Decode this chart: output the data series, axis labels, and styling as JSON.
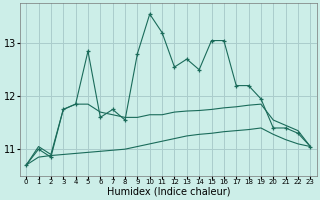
{
  "xlabel": "Humidex (Indice chaleur)",
  "background_color": "#cceee8",
  "grid_color": "#aacccc",
  "line_color": "#1a6b5a",
  "x_values": [
    0,
    1,
    2,
    3,
    4,
    5,
    6,
    7,
    8,
    9,
    10,
    11,
    12,
    13,
    14,
    15,
    16,
    17,
    18,
    19,
    20,
    21,
    22,
    23
  ],
  "y_main": [
    10.7,
    11.0,
    10.85,
    11.75,
    11.85,
    12.85,
    11.6,
    11.75,
    11.55,
    12.8,
    13.55,
    13.2,
    12.55,
    12.7,
    12.5,
    13.05,
    13.05,
    12.2,
    12.2,
    11.95,
    11.4,
    11.4,
    11.3,
    11.05
  ],
  "y_upper": [
    10.7,
    11.05,
    10.9,
    11.75,
    11.85,
    11.85,
    11.7,
    11.65,
    11.6,
    11.6,
    11.65,
    11.65,
    11.7,
    11.72,
    11.73,
    11.75,
    11.78,
    11.8,
    11.83,
    11.85,
    11.55,
    11.45,
    11.35,
    11.05
  ],
  "y_lower": [
    10.7,
    10.85,
    10.88,
    10.9,
    10.92,
    10.94,
    10.96,
    10.98,
    11.0,
    11.05,
    11.1,
    11.15,
    11.2,
    11.25,
    11.28,
    11.3,
    11.33,
    11.35,
    11.37,
    11.4,
    11.28,
    11.18,
    11.1,
    11.05
  ],
  "ylim": [
    10.5,
    13.75
  ],
  "xlim": [
    -0.5,
    23.5
  ],
  "yticks": [
    11,
    12,
    13
  ],
  "ytick_labels": [
    "11",
    "12",
    "13"
  ],
  "xtick_labels": [
    "0",
    "1",
    "2",
    "3",
    "4",
    "5",
    "6",
    "7",
    "8",
    "9",
    "10",
    "11",
    "12",
    "13",
    "14",
    "15",
    "16",
    "17",
    "18",
    "19",
    "20",
    "21",
    "22",
    "23"
  ],
  "title_fontsize": 7,
  "xlabel_fontsize": 7,
  "ylabel_fontsize": 7,
  "xtick_fontsize": 5,
  "ytick_fontsize": 7
}
